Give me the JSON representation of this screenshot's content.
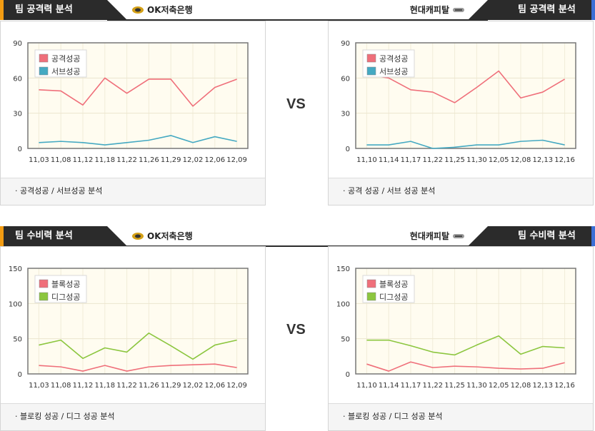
{
  "vs_label": "VS",
  "colors": {
    "attack": "#ef6f7a",
    "serve": "#44a9c2",
    "block": "#ef6f7a",
    "dig": "#8cc63f"
  },
  "sections": [
    {
      "left_title": "팀 공격력 분석",
      "right_title": "팀 공격력 분석",
      "left_team": "OK저축은행",
      "right_team": "현대캐피탈",
      "left_footer": "· 공격성공 / 서브성공 분석",
      "right_footer": "· 공격 성공 / 서브 성공 분석"
    },
    {
      "left_title": "팀 수비력 분석",
      "right_title": "팀 수비력 분석",
      "left_team": "OK저축은행",
      "right_team": "현대캐피탈",
      "left_footer": "· 블로킹 성공 / 디그 성공 분석",
      "right_footer": "· 블로킹 성공 / 디그 성공 분석"
    }
  ],
  "chart_data": [
    {
      "type": "line",
      "team": "OK저축은행",
      "x": [
        "11,03",
        "11,08",
        "11,12",
        "11,18",
        "11,22",
        "11,26",
        "11,29",
        "12,02",
        "12,06",
        "12,09"
      ],
      "ylim": [
        0,
        90
      ],
      "yticks": [
        0,
        30,
        60,
        90
      ],
      "series": [
        {
          "name": "공격성공",
          "values": [
            50,
            49,
            37,
            60,
            47,
            59,
            59,
            36,
            52,
            59
          ]
        },
        {
          "name": "서브성공",
          "values": [
            5,
            6,
            5,
            3,
            5,
            7,
            11,
            5,
            10,
            6
          ]
        }
      ]
    },
    {
      "type": "line",
      "team": "현대캐피탈",
      "x": [
        "11,10",
        "11,14",
        "11,17",
        "11,22",
        "11,25",
        "11,30",
        "12,05",
        "12,08",
        "12,13",
        "12,16"
      ],
      "ylim": [
        0,
        90
      ],
      "yticks": [
        0,
        30,
        60,
        90
      ],
      "series": [
        {
          "name": "공격성공",
          "values": [
            63,
            60,
            50,
            48,
            39,
            52,
            66,
            43,
            48,
            59
          ]
        },
        {
          "name": "서브성공",
          "values": [
            3,
            3,
            6,
            0,
            1,
            3,
            3,
            6,
            7,
            3
          ]
        }
      ]
    },
    {
      "type": "line",
      "team": "OK저축은행",
      "x": [
        "11,03",
        "11,08",
        "11,12",
        "11,18",
        "11,22",
        "11,26",
        "11,29",
        "12,02",
        "12,06",
        "12,09"
      ],
      "ylim": [
        0,
        150
      ],
      "yticks": [
        0,
        50,
        100,
        150
      ],
      "series": [
        {
          "name": "블록성공",
          "values": [
            12,
            10,
            4,
            12,
            4,
            10,
            12,
            13,
            14,
            9
          ]
        },
        {
          "name": "디그성공",
          "values": [
            41,
            48,
            22,
            37,
            31,
            58,
            40,
            21,
            41,
            48
          ]
        }
      ]
    },
    {
      "type": "line",
      "team": "현대캐피탈",
      "x": [
        "11,10",
        "11,14",
        "11,17",
        "11,22",
        "11,25",
        "11,30",
        "12,05",
        "12,08",
        "12,13",
        "12,16"
      ],
      "ylim": [
        0,
        150
      ],
      "yticks": [
        0,
        50,
        100,
        150
      ],
      "series": [
        {
          "name": "블록성공",
          "values": [
            14,
            4,
            17,
            9,
            11,
            10,
            8,
            7,
            8,
            16
          ]
        },
        {
          "name": "디그성공",
          "values": [
            48,
            48,
            40,
            31,
            27,
            41,
            54,
            28,
            39,
            37
          ]
        }
      ]
    }
  ]
}
